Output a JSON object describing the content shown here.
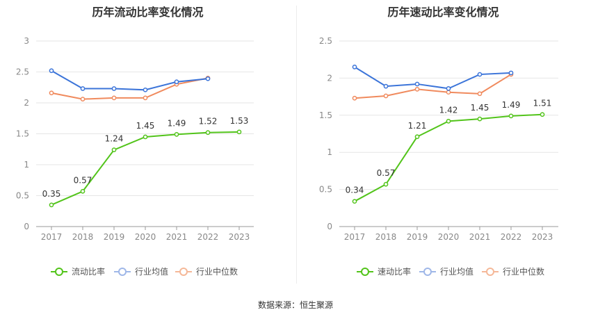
{
  "footer": {
    "source": "数据来源：恒生聚源"
  },
  "chart_data": [
    {
      "type": "line",
      "title": "历年流动比率变化情况",
      "categories": [
        "2017",
        "2018",
        "2019",
        "2020",
        "2021",
        "2022",
        "2023"
      ],
      "ylim": [
        0,
        3
      ],
      "yticks": [
        "0",
        "0.5",
        "1",
        "1.5",
        "2",
        "2.5",
        "3"
      ],
      "grid": true,
      "legend_position": "bottom",
      "series": [
        {
          "name": "流动比率",
          "color": "#52c41a",
          "values": [
            0.35,
            0.57,
            1.24,
            1.45,
            1.49,
            1.52,
            1.53
          ],
          "labels": [
            "0.35",
            "0.57",
            "1.24",
            "1.45",
            "1.49",
            "1.52",
            "1.53"
          ]
        },
        {
          "name": "行业均值",
          "color": "#3b74d9",
          "values": [
            2.52,
            2.23,
            2.23,
            2.21,
            2.34,
            2.39,
            null
          ]
        },
        {
          "name": "行业中位数",
          "color": "#f08a5d",
          "values": [
            2.16,
            2.06,
            2.08,
            2.08,
            2.3,
            2.4,
            null
          ]
        }
      ]
    },
    {
      "type": "line",
      "title": "历年速动比率变化情况",
      "categories": [
        "2017",
        "2018",
        "2019",
        "2020",
        "2021",
        "2022",
        "2023"
      ],
      "ylim": [
        0,
        2.5
      ],
      "yticks": [
        "0",
        "0.5",
        "1",
        "1.5",
        "2",
        "2.5"
      ],
      "grid": true,
      "legend_position": "bottom",
      "series": [
        {
          "name": "速动比率",
          "color": "#52c41a",
          "values": [
            0.34,
            0.57,
            1.21,
            1.42,
            1.45,
            1.49,
            1.51
          ],
          "labels": [
            "0.34",
            "0.57",
            "1.21",
            "1.42",
            "1.45",
            "1.49",
            "1.51"
          ]
        },
        {
          "name": "行业均值",
          "color": "#3b74d9",
          "values": [
            2.15,
            1.89,
            1.92,
            1.86,
            2.05,
            2.07,
            null
          ]
        },
        {
          "name": "行业中位数",
          "color": "#f08a5d",
          "values": [
            1.73,
            1.76,
            1.85,
            1.81,
            1.79,
            2.05,
            null
          ]
        }
      ]
    }
  ]
}
